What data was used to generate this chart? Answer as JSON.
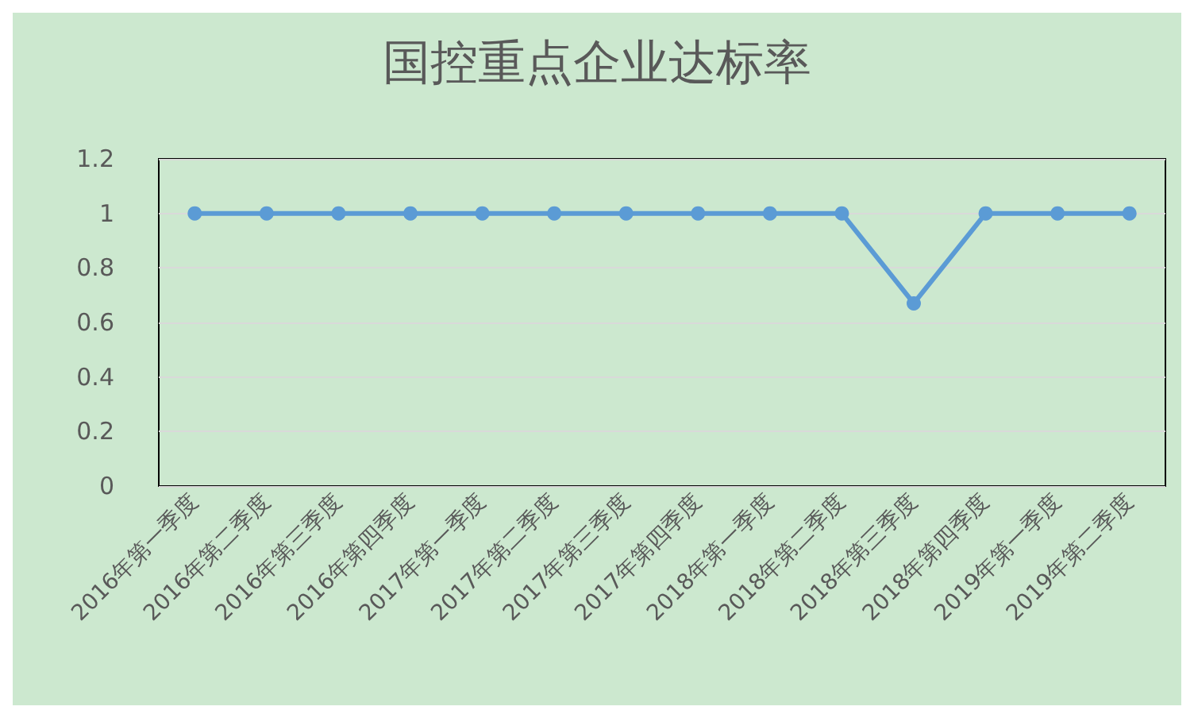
{
  "chart_data": {
    "type": "line",
    "title": "国控重点企业达标率",
    "categories": [
      "2016年第一季度",
      "2016年第二季度",
      "2016年第三季度",
      "2016年第四季度",
      "2017年第一季度",
      "2017年第二季度",
      "2017年第三季度",
      "2017年第四季度",
      "2018年第一季度",
      "2018年第二季度",
      "2018年第三季度",
      "2018年第四季度",
      "2019年第一季度",
      "2019年第二季度"
    ],
    "series": [
      {
        "color": "#5b9bd5",
        "values": [
          1,
          1,
          1,
          1,
          1,
          1,
          1,
          1,
          1,
          1,
          0.67,
          1,
          1,
          1
        ]
      }
    ],
    "ylim": [
      0,
      1.2
    ],
    "yticks": [
      0,
      0.2,
      0.4,
      0.6,
      0.8,
      1,
      1.2
    ],
    "grid": "y",
    "marker": "circle",
    "line_style": "solid"
  }
}
